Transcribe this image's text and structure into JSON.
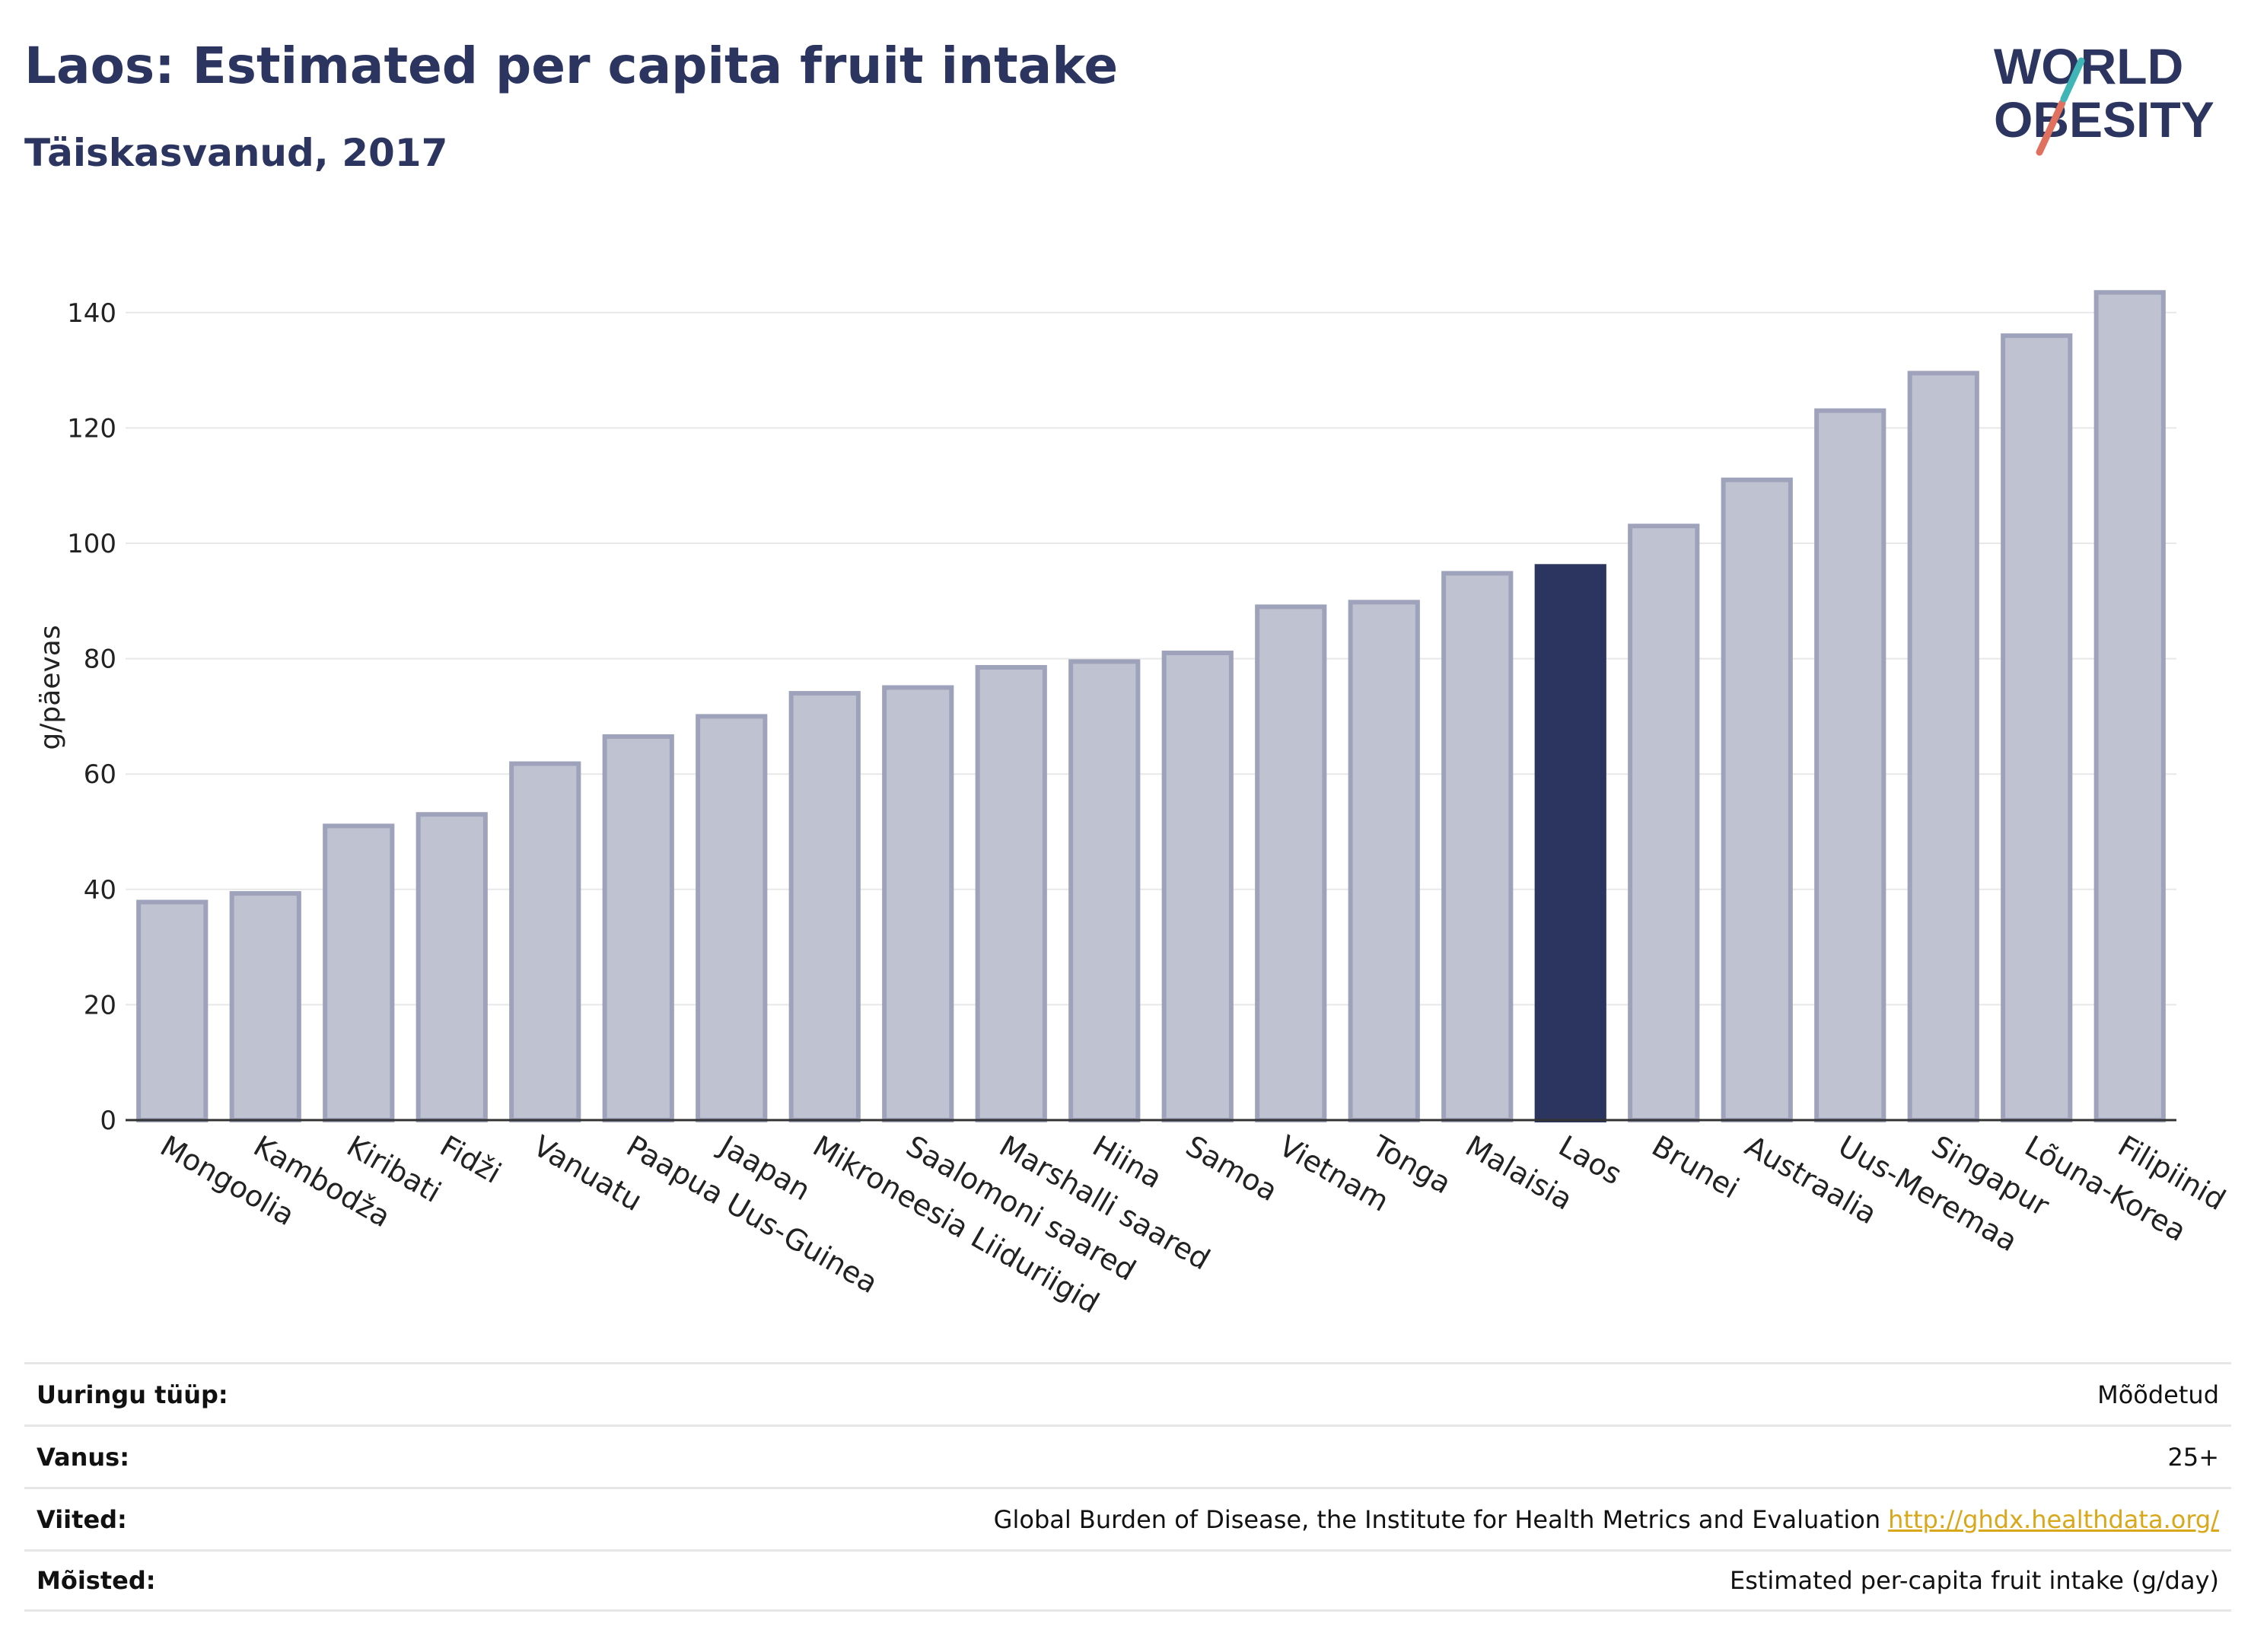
{
  "header": {
    "title": "Laos: Estimated per capita fruit intake",
    "subtitle": "Täiskasvanud, 2017"
  },
  "logo": {
    "line1": "WORLD",
    "line2": "OBESITY"
  },
  "colors": {
    "bar": "#bfc3d1",
    "bar_border": "#9ea3bb",
    "highlight": "#2b3560",
    "text": "#2b3560",
    "grid": "#e8e8e8"
  },
  "chart_data": {
    "type": "bar",
    "categories": [
      "Mongoolia",
      "Kambodža",
      "Kiribati",
      "Fidži",
      "Vanuatu",
      "Paapua Uus-Guinea",
      "Jaapan",
      "Mikroneesia Liiduriigid",
      "Saalomoni saared",
      "Marshalli saared",
      "Hiina",
      "Samoa",
      "Vietnam",
      "Tonga",
      "Malaisia",
      "Laos",
      "Brunei",
      "Austraalia",
      "Uus-Meremaa",
      "Singapur",
      "Lõuna-Korea",
      "Filipiinid"
    ],
    "values": [
      37.8,
      39.3,
      51,
      53,
      61.8,
      66.5,
      70,
      74,
      75,
      78.5,
      79.5,
      81,
      89,
      89.8,
      94.8,
      96,
      103,
      111,
      123,
      129.5,
      136,
      143.5
    ],
    "highlight": "Laos",
    "xlabel": "",
    "ylabel": "g/päevas",
    "ylim": [
      0,
      150
    ],
    "yticks": [
      0,
      20,
      40,
      60,
      80,
      100,
      120,
      140
    ],
    "grid": true
  },
  "meta": [
    {
      "label": "Uuringu tüüp:",
      "value": "Mõõdetud"
    },
    {
      "label": "Vanus:",
      "value": "25+"
    },
    {
      "label": "Viited:",
      "value": "Global Burden of Disease, the Institute for Health Metrics and Evaluation",
      "link": "http://ghdx.healthdata.org/"
    },
    {
      "label": "Mõisted:",
      "value": "Estimated per-capita fruit intake (g/day)"
    }
  ]
}
